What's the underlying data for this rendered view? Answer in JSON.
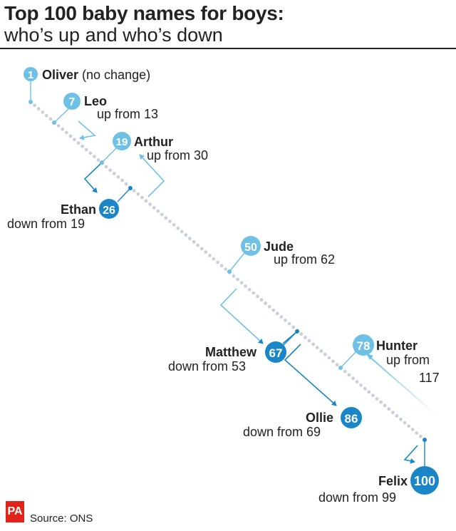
{
  "header": {
    "title": "Top 100 baby names for boys:",
    "subtitle": "who’s up and who’s down"
  },
  "colors": {
    "up": "#6ec1e4",
    "down": "#1a86c8",
    "track": "#c8d0da",
    "text": "#222222",
    "pa_red": "#e2231a"
  },
  "names": [
    {
      "rank": "1",
      "name": "Oliver",
      "note": "(no change)",
      "direction": "none"
    },
    {
      "rank": "7",
      "name": "Leo",
      "note": "up from 13",
      "direction": "up"
    },
    {
      "rank": "19",
      "name": "Arthur",
      "note": "up from 30",
      "direction": "up"
    },
    {
      "rank": "26",
      "name": "Ethan",
      "note": "down from 19",
      "direction": "down"
    },
    {
      "rank": "50",
      "name": "Jude",
      "note": "up from 62",
      "direction": "up"
    },
    {
      "rank": "67",
      "name": "Matthew",
      "note": "down from 53",
      "direction": "down"
    },
    {
      "rank": "78",
      "name": "Hunter",
      "note_line1": "up from",
      "note_line2": "117",
      "direction": "up"
    },
    {
      "rank": "86",
      "name": "Ollie",
      "note": "down from 69",
      "direction": "down"
    },
    {
      "rank": "100",
      "name": "Felix",
      "note": "down from 99",
      "direction": "down"
    }
  ],
  "footer": {
    "logo": "PA",
    "source": "Source: ONS"
  }
}
